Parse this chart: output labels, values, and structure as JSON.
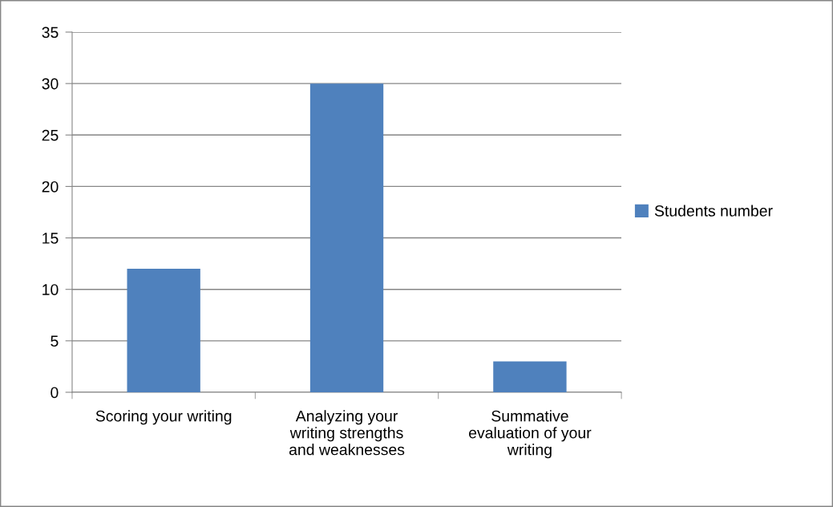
{
  "chart_data": {
    "type": "bar",
    "categories": [
      "Scoring your writing",
      "Analyzing your\nwriting strengths\nand weaknesses",
      "Summative\nevaluation of your\nwriting"
    ],
    "series": [
      {
        "name": "Students number",
        "color": "#4f81bd",
        "values": [
          12,
          30,
          3
        ]
      }
    ],
    "ylim": [
      0,
      35
    ],
    "yticks": [
      0,
      5,
      10,
      15,
      20,
      25,
      30,
      35
    ],
    "grid": "y",
    "legend": "right"
  }
}
